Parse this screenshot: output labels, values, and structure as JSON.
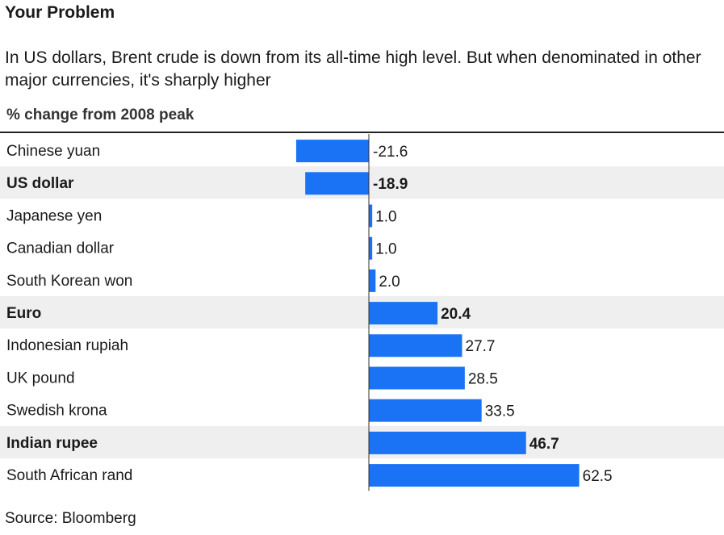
{
  "title": "Your Problem",
  "subtitle": "In US dollars, Brent crude is down from its all-time high level. But when denominated in other major currencies, it's sharply higher",
  "column_header": "% change from 2008 peak",
  "source": "Source: Bloomberg",
  "colors": {
    "bar": "#1a73f5",
    "highlight_row": "#efefef",
    "text": "#1a1a1a"
  },
  "chart_data": {
    "type": "bar",
    "orientation": "horizontal",
    "categories": [
      "Chinese yuan",
      "US dollar",
      "Japanese yen",
      "Canadian dollar",
      "South Korean won",
      "Euro",
      "Indonesian rupiah",
      "UK pound",
      "Swedish krona",
      "Indian rupee",
      "South African rand"
    ],
    "values": [
      -21.6,
      -18.9,
      1.0,
      1.0,
      2.0,
      20.4,
      27.7,
      28.5,
      33.5,
      46.7,
      62.5
    ],
    "labels": [
      "-21.6",
      "-18.9",
      "1.0",
      "1.0",
      "2.0",
      "20.4",
      "27.7",
      "28.5",
      "33.5",
      "46.7",
      "62.5"
    ],
    "highlighted": [
      "US dollar",
      "Euro",
      "Indian rupee"
    ],
    "xlim": [
      -21.6,
      62.5
    ],
    "grid": false,
    "legend": "none"
  }
}
